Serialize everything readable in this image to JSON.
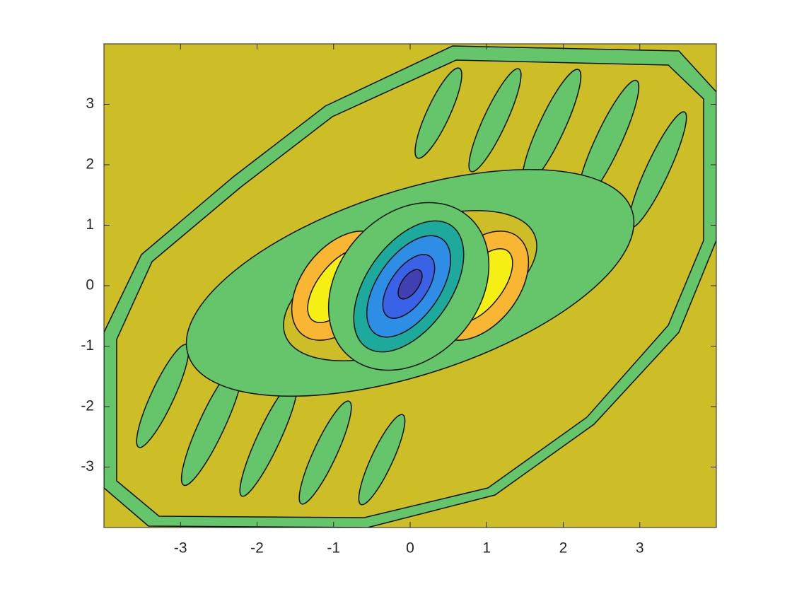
{
  "chart_data": {
    "type": "contour",
    "xlim": [
      -4,
      4
    ],
    "ylim": [
      -4,
      4
    ],
    "xticks": [
      -3,
      -2,
      -1,
      0,
      1,
      2,
      3
    ],
    "yticks": [
      -3,
      -2,
      -1,
      0,
      1,
      2,
      3
    ]
  }
}
